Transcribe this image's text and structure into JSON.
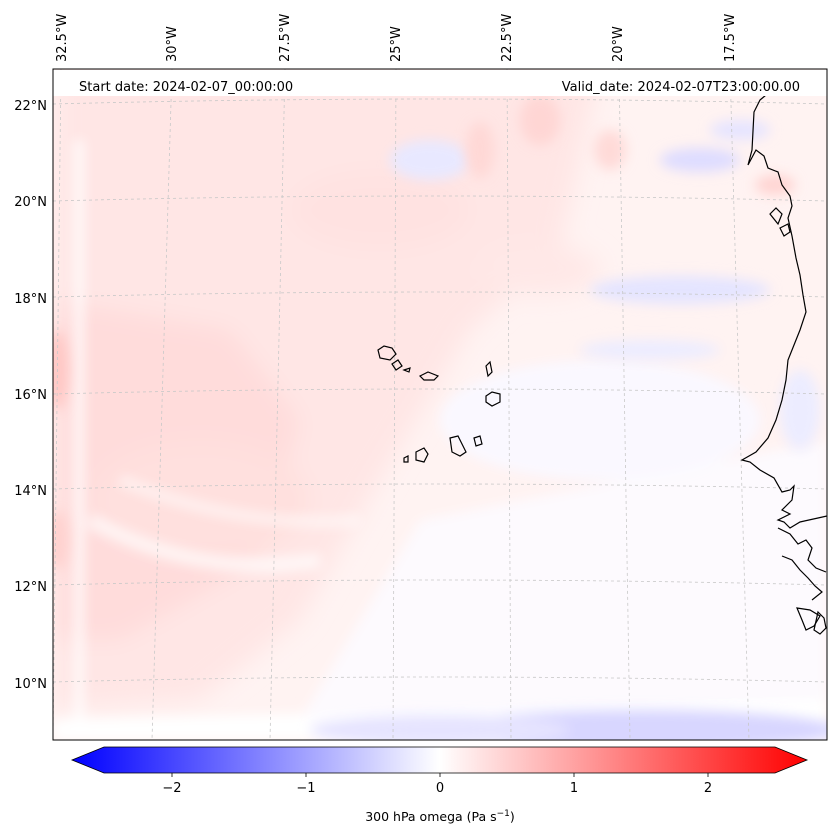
{
  "header": {
    "start_date": "Start date: 2024-02-07_00:00:00",
    "valid_date": "Valid_date: 2024-02-07T23:00:00.00"
  },
  "lon_labels": [
    "32.5°W",
    "30°W",
    "27.5°W",
    "25°W",
    "22.5°W",
    "20°W",
    "17.5°W"
  ],
  "lat_labels": [
    "22°N",
    "20°N",
    "18°N",
    "16°N",
    "14°N",
    "12°N",
    "10°N"
  ],
  "colorbar": {
    "ticks": [
      "−2",
      "−1",
      "0",
      "1",
      "2"
    ],
    "min": -2.6,
    "max": 2.6,
    "label_main": "300 hPa omega (Pa s",
    "label_sup": "−1",
    "label_end": ")",
    "colors": {
      "negative": "#0000ff",
      "zero": "#ffffff",
      "positive": "#ff0000"
    }
  },
  "map": {
    "field": "300 hPa omega",
    "coastline_color": "#000000",
    "gridline_color": "#c8c8c8"
  }
}
